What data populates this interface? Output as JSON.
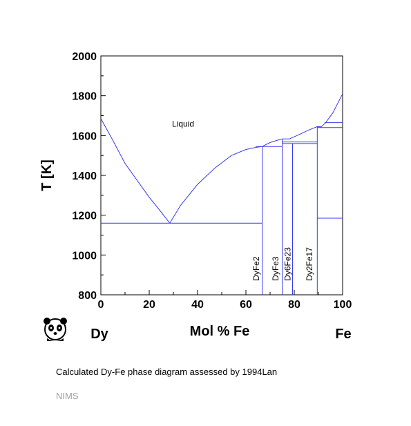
{
  "chart_data": {
    "type": "line",
    "title": "",
    "xlabel": "Mol % Fe",
    "ylabel": "T [K]",
    "xlim": [
      0,
      100
    ],
    "ylim": [
      800,
      2000
    ],
    "x_ticks": [
      0,
      20,
      40,
      60,
      80,
      100
    ],
    "y_ticks": [
      800,
      1000,
      1200,
      1400,
      1600,
      1800,
      2000
    ],
    "line_color": "#3a3af0",
    "left_element": "Dy",
    "right_element": "Fe",
    "region_labels": [
      {
        "text": "Liquid",
        "x": 34,
        "y": 1645
      }
    ],
    "compound_labels": [
      {
        "text": "DyFe2",
        "x": 65.5,
        "y": 870
      },
      {
        "text": "DyFe3",
        "x": 73.5,
        "y": 870
      },
      {
        "text": "Dy6Fe23",
        "x": 78.5,
        "y": 870
      },
      {
        "text": "Dy2Fe17",
        "x": 87.5,
        "y": 870
      }
    ],
    "series": [
      {
        "points": [
          [
            0,
            1685
          ],
          [
            5,
            1575
          ],
          [
            10,
            1460
          ],
          [
            15,
            1375
          ],
          [
            20,
            1290
          ],
          [
            24,
            1230
          ],
          [
            28.5,
            1160
          ]
        ]
      },
      {
        "points": [
          [
            28.5,
            1160
          ],
          [
            33,
            1250
          ],
          [
            40,
            1355
          ],
          [
            47,
            1435
          ],
          [
            54,
            1500
          ],
          [
            60,
            1530
          ],
          [
            64,
            1540
          ],
          [
            66.7,
            1545
          ],
          [
            70,
            1565
          ],
          [
            74,
            1580
          ],
          [
            75,
            1583
          ]
        ]
      },
      {
        "points": [
          [
            75,
            1583
          ],
          [
            78,
            1583
          ]
        ]
      },
      {
        "points": [
          [
            78,
            1583
          ],
          [
            82,
            1605
          ],
          [
            86,
            1628
          ],
          [
            89.5,
            1645
          ],
          [
            91,
            1645
          ]
        ]
      },
      {
        "points": [
          [
            89.5,
            1645
          ],
          [
            91,
            1642
          ],
          [
            93,
            1665
          ],
          [
            96,
            1715
          ],
          [
            100,
            1810
          ]
        ]
      },
      {
        "points": [
          [
            0,
            1160
          ],
          [
            66.7,
            1160
          ]
        ]
      },
      {
        "points": [
          [
            64,
            1545
          ],
          [
            66.7,
            1545
          ]
        ]
      },
      {
        "points": [
          [
            66.7,
            800
          ],
          [
            66.7,
            1545
          ]
        ]
      },
      {
        "points": [
          [
            66.7,
            1545
          ],
          [
            75,
            1545
          ]
        ]
      },
      {
        "points": [
          [
            75,
            800
          ],
          [
            75,
            1583
          ]
        ]
      },
      {
        "points": [
          [
            75,
            1568
          ],
          [
            89.5,
            1568
          ]
        ]
      },
      {
        "points": [
          [
            75,
            1560
          ],
          [
            89.5,
            1560
          ]
        ]
      },
      {
        "points": [
          [
            79.3,
            800
          ],
          [
            79.3,
            1560
          ]
        ]
      },
      {
        "points": [
          [
            89.5,
            800
          ],
          [
            89.5,
            1645
          ]
        ]
      },
      {
        "points": [
          [
            89.5,
            1640
          ],
          [
            100,
            1640
          ]
        ]
      },
      {
        "points": [
          [
            92.5,
            1665
          ],
          [
            100,
            1665
          ]
        ]
      },
      {
        "points": [
          [
            89.5,
            1185
          ],
          [
            100,
            1185
          ]
        ]
      }
    ]
  },
  "caption": "Calculated Dy-Fe phase diagram assessed by 1994Lan",
  "credit": "NIMS",
  "logo_icon": "panda-icon"
}
